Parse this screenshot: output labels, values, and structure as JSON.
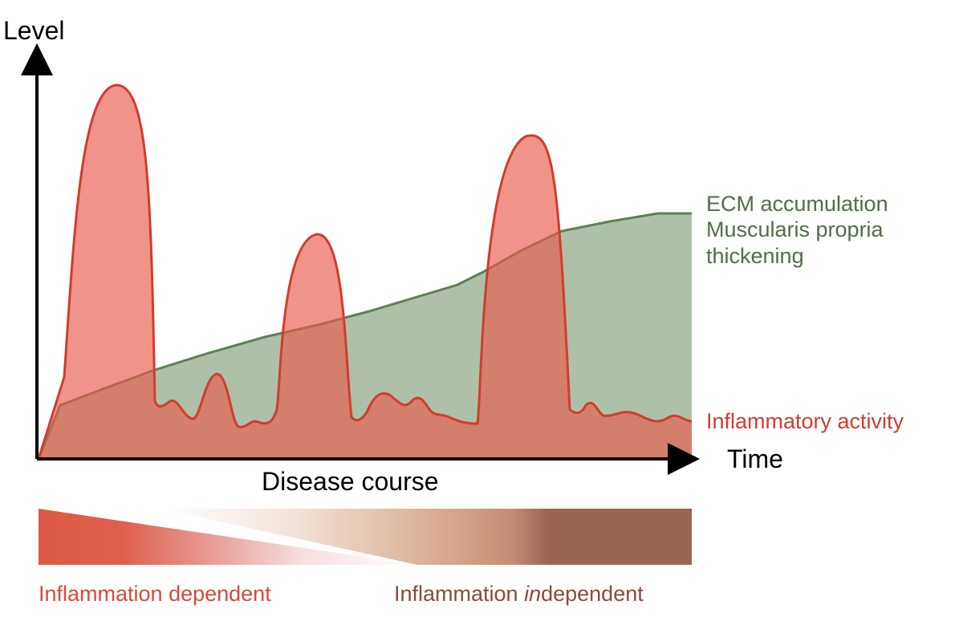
{
  "axes": {
    "y_label": "Level",
    "x_label": "Time",
    "course_label": "Disease course"
  },
  "series": {
    "ecm": {
      "line1": "ECM accumulation",
      "line2": "Muscularis propria",
      "line3": "thickening",
      "color": "#4f6e47"
    },
    "inflammation": {
      "label": "Inflammatory activity",
      "color": "#d23c2e"
    }
  },
  "bar": {
    "left_label": "Inflammation dependent",
    "right_label_prefix": "Inflammation ",
    "right_label_italic": "in",
    "right_label_suffix": "dependent",
    "left_color": "#dc5a45",
    "right_color": "#9b6556"
  }
}
